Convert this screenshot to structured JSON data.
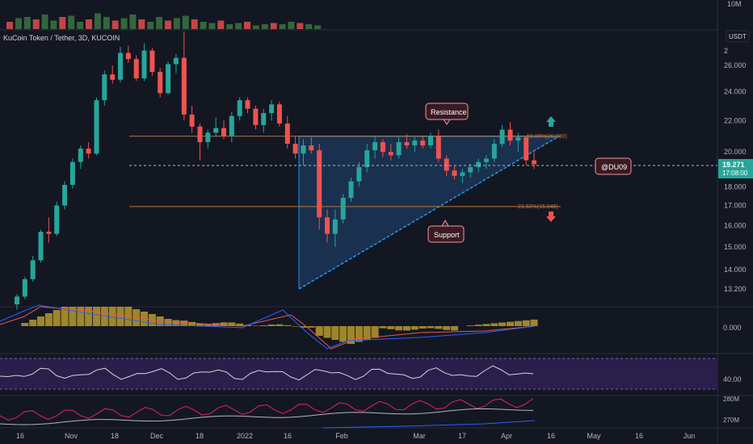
{
  "header": {
    "symbol_title": "KuCoin Token / Tether, 3D, KUCOIN",
    "currency": "USDT",
    "volume_axis_label": "10M"
  },
  "annotations": {
    "resistance_label": "Resistance",
    "support_label": "Support",
    "author_tag": "@DU09",
    "fib_50_label": "50.00%(20.980)",
    "fib_236_label": "23.60%(16.945)"
  },
  "price_badge": {
    "price": "19.271",
    "countdown": "17:08:00",
    "color": "#26a69a"
  },
  "colors": {
    "up": "#26a69a",
    "down": "#ef5350",
    "background": "#131722",
    "triangle_fill": "#1d3a5f",
    "triangle_stroke": "#2196f3",
    "fib_line": "#b8773a",
    "macd_hist": "#b89a2a",
    "rsi_band": "#2a1f4a",
    "arrow_up": "#26a69a",
    "arrow_down": "#ef5350"
  },
  "price_axis": {
    "ticks": [
      "26.000",
      "24.000",
      "22.000",
      "20.000",
      "18.000",
      "17.000",
      "16.000",
      "15.000",
      "14.000",
      "13.200"
    ],
    "top_partial": "2",
    "ylim_note": "log-like scale"
  },
  "macd_axis": {
    "ticks": [
      "0.000"
    ]
  },
  "rsi_axis": {
    "ticks": [
      "40.00"
    ]
  },
  "obv_axis": {
    "ticks": [
      "280M",
      "270M"
    ]
  },
  "time_axis": {
    "ticks": [
      "16",
      "Nov",
      "18",
      "Dec",
      "18",
      "2022",
      "16",
      "Feb",
      "Mar",
      "17",
      "Apr",
      "16",
      "May",
      "16",
      "Jun"
    ]
  },
  "chart_data": {
    "type": "candlestick",
    "series_unit": "USDT",
    "candles": [
      [
        12.6,
        13.0,
        12.4,
        12.9
      ],
      [
        12.9,
        13.7,
        12.8,
        13.6
      ],
      [
        13.6,
        14.6,
        13.5,
        14.4
      ],
      [
        14.4,
        15.8,
        14.3,
        15.7
      ],
      [
        15.7,
        16.4,
        15.2,
        15.6
      ],
      [
        15.6,
        17.2,
        15.5,
        17.0
      ],
      [
        17.0,
        18.3,
        16.8,
        18.1
      ],
      [
        18.1,
        19.6,
        17.9,
        19.4
      ],
      [
        19.4,
        20.4,
        19.0,
        20.2
      ],
      [
        20.2,
        20.6,
        19.6,
        19.9
      ],
      [
        19.9,
        23.6,
        19.8,
        23.4
      ],
      [
        23.4,
        25.6,
        23.0,
        25.3
      ],
      [
        25.3,
        26.0,
        24.6,
        24.9
      ],
      [
        24.9,
        27.5,
        24.7,
        27.0
      ],
      [
        27.0,
        27.6,
        26.2,
        26.5
      ],
      [
        26.5,
        26.8,
        24.8,
        25.0
      ],
      [
        25.0,
        27.8,
        24.8,
        27.2
      ],
      [
        27.2,
        27.4,
        25.2,
        25.5
      ],
      [
        25.5,
        25.8,
        23.6,
        23.9
      ],
      [
        23.9,
        26.3,
        23.8,
        26.1
      ],
      [
        26.1,
        26.9,
        25.4,
        26.6
      ],
      [
        26.6,
        28.8,
        22.0,
        22.4
      ],
      [
        22.4,
        23.0,
        21.2,
        21.6
      ],
      [
        21.6,
        21.8,
        19.5,
        20.6
      ],
      [
        20.6,
        21.4,
        20.2,
        21.2
      ],
      [
        21.2,
        22.2,
        21.0,
        21.5
      ],
      [
        21.5,
        22.0,
        20.8,
        21.0
      ],
      [
        21.0,
        22.6,
        20.6,
        22.3
      ],
      [
        22.3,
        23.6,
        22.0,
        23.4
      ],
      [
        23.4,
        23.6,
        22.5,
        22.8
      ],
      [
        22.8,
        23.0,
        21.4,
        21.7
      ],
      [
        21.7,
        22.8,
        21.2,
        22.5
      ],
      [
        22.5,
        23.4,
        22.0,
        23.1
      ],
      [
        23.1,
        23.3,
        21.6,
        21.8
      ],
      [
        21.8,
        22.3,
        20.2,
        20.5
      ],
      [
        20.5,
        21.0,
        19.6,
        19.9
      ],
      [
        19.9,
        20.8,
        19.2,
        20.4
      ],
      [
        20.4,
        20.9,
        19.9,
        20.1
      ],
      [
        20.1,
        20.5,
        15.8,
        16.4
      ],
      [
        16.4,
        16.8,
        15.2,
        15.6
      ],
      [
        15.6,
        16.8,
        15.0,
        16.3
      ],
      [
        16.3,
        17.6,
        16.1,
        17.4
      ],
      [
        17.4,
        18.5,
        17.2,
        18.3
      ],
      [
        18.3,
        19.4,
        18.0,
        19.1
      ],
      [
        19.1,
        20.5,
        18.8,
        20.1
      ],
      [
        20.1,
        21.0,
        19.6,
        20.6
      ],
      [
        20.6,
        20.8,
        19.7,
        20.0
      ],
      [
        20.0,
        20.5,
        19.5,
        19.8
      ],
      [
        19.8,
        20.9,
        19.6,
        20.6
      ],
      [
        20.6,
        21.1,
        20.2,
        20.4
      ],
      [
        20.4,
        20.9,
        20.0,
        20.7
      ],
      [
        20.7,
        21.0,
        20.2,
        20.4
      ],
      [
        20.4,
        21.2,
        20.2,
        21.0
      ],
      [
        21.0,
        21.4,
        19.4,
        19.6
      ],
      [
        19.6,
        19.8,
        18.6,
        18.9
      ],
      [
        18.9,
        19.2,
        18.4,
        18.6
      ],
      [
        18.6,
        19.0,
        18.2,
        18.8
      ],
      [
        18.8,
        19.3,
        18.5,
        19.1
      ],
      [
        19.1,
        19.6,
        18.8,
        19.4
      ],
      [
        19.4,
        19.8,
        19.0,
        19.6
      ],
      [
        19.6,
        20.8,
        19.4,
        20.5
      ],
      [
        20.5,
        21.7,
        20.3,
        21.4
      ],
      [
        21.4,
        21.9,
        20.4,
        20.7
      ],
      [
        20.7,
        21.2,
        20.0,
        20.9
      ],
      [
        20.9,
        21.0,
        19.2,
        19.5
      ],
      [
        19.5,
        20.0,
        19.0,
        19.271
      ]
    ],
    "volume_bars_relative": [
      0.3,
      0.45,
      0.5,
      0.4,
      0.6,
      0.35,
      0.5,
      0.55,
      0.3,
      0.4,
      0.65,
      0.5,
      0.35,
      0.45,
      0.6,
      0.4,
      0.3,
      0.5,
      0.35,
      0.45,
      0.55,
      0.4,
      0.3,
      0.25,
      0.35,
      0.2,
      0.25,
      0.3,
      0.15,
      0.2,
      0.25,
      0.2,
      0.3,
      0.25,
      0.2,
      0.15
    ],
    "resistance_level": 20.98,
    "support_trend": "ascending from ~13.2 to ~20.9",
    "fib_levels": [
      {
        "pct": "50.00%",
        "value": 20.98
      },
      {
        "pct": "23.60%",
        "value": 16.945
      }
    ],
    "current_price": 19.271
  }
}
